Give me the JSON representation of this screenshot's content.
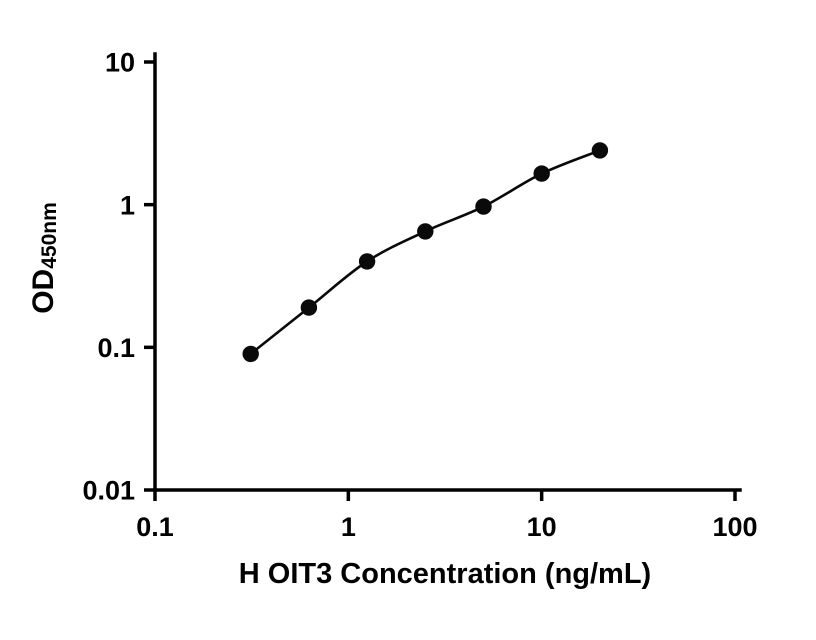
{
  "chart_data": {
    "type": "scatter",
    "subtype": "standard-curve-with-fit-line",
    "title": "",
    "xlabel": "H OIT3 Concentration (ng/mL)",
    "ylabel_main": "OD",
    "ylabel_sub": "450nm",
    "xscale": "log",
    "yscale": "log",
    "xlim": [
      0.1,
      100
    ],
    "ylim": [
      0.01,
      10
    ],
    "xticks": [
      0.1,
      1,
      10,
      100
    ],
    "xtick_labels": [
      "0.1",
      "1",
      "10",
      "100"
    ],
    "yticks": [
      0.01,
      0.1,
      1,
      10
    ],
    "ytick_labels": [
      "0.01",
      "0.1",
      "1",
      "10"
    ],
    "x": [
      0.3125,
      0.625,
      1.25,
      2.5,
      5,
      10,
      20
    ],
    "y": [
      0.09,
      0.19,
      0.4,
      0.65,
      0.97,
      1.65,
      2.4
    ],
    "grid": false,
    "legend": false,
    "marker_color": "#0a0a0a",
    "line_color": "#0a0a0a",
    "axis_color": "#000000"
  }
}
